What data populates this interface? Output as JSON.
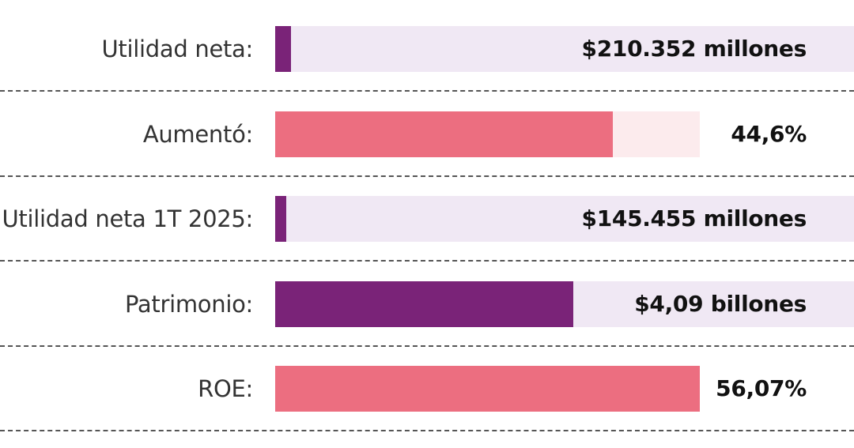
{
  "colors": {
    "purple": "#7a2378",
    "purple_track": "#f0e8f4",
    "pink": "#ec6e80",
    "pink_track": "#fcebed"
  },
  "chart_data": {
    "type": "bar",
    "orientation": "horizontal",
    "rows": [
      {
        "label": "Utilidad neta:",
        "value_text": "$210.352 millones",
        "fill_fraction": 0.027,
        "track_fraction": 1.0,
        "color": "purple"
      },
      {
        "label": "Aumentó:",
        "value_text": "44,6%",
        "fill_fraction": 0.583,
        "track_fraction": 0.733,
        "color": "pink"
      },
      {
        "label": "Utilidad neta 1T 2025:",
        "value_text": "$145.455 millones",
        "fill_fraction": 0.019,
        "track_fraction": 1.0,
        "color": "purple"
      },
      {
        "label": "Patrimonio:",
        "value_text": "$4,09 billones",
        "fill_fraction": 0.515,
        "track_fraction": 1.0,
        "color": "purple"
      },
      {
        "label": "ROE:",
        "value_text": "56,07%",
        "fill_fraction": 0.733,
        "track_fraction": 0.733,
        "color": "pink"
      }
    ]
  }
}
